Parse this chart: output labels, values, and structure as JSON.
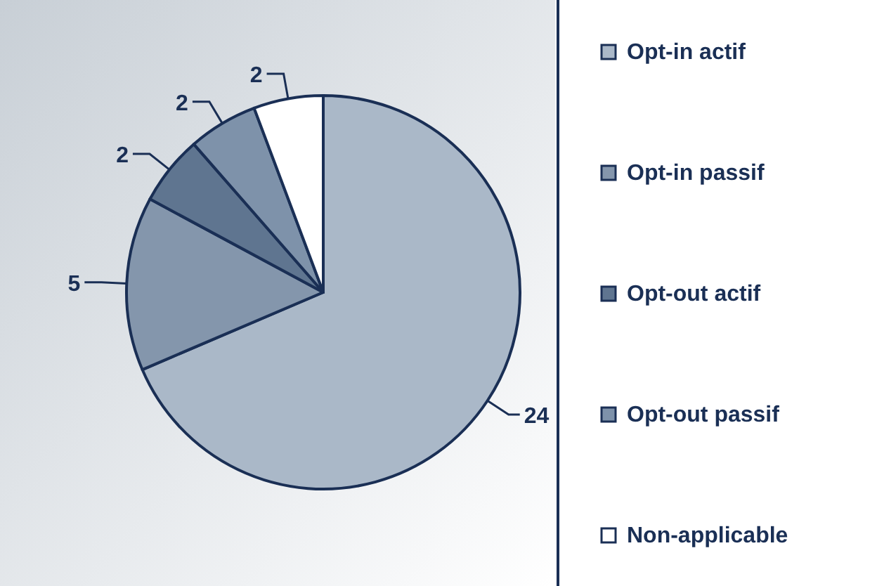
{
  "chart_data": {
    "type": "pie",
    "categories": [
      "Opt-in actif",
      "Opt-in passif",
      "Opt-out actif",
      "Opt-out passif",
      "Non-applicable"
    ],
    "values": [
      24,
      5,
      2,
      2,
      2
    ],
    "colors": [
      "#aab8c8",
      "#8496ac",
      "#5f7590",
      "#7e92aa",
      "#ffffff"
    ],
    "data_labels": true,
    "legend": "right"
  }
}
